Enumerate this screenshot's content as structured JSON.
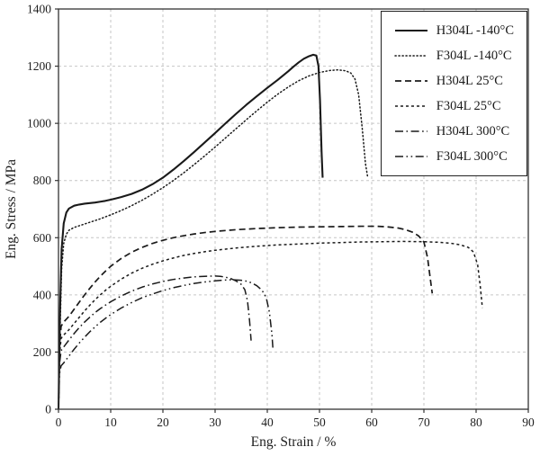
{
  "figure": {
    "background": "#ffffff",
    "border_color": "#333333",
    "text_color": "#1f1f1f"
  },
  "chart_data": {
    "type": "line",
    "title": "",
    "xlabel": "Eng. Strain / %",
    "ylabel": "Eng. Stress / MPa",
    "xlim": [
      0,
      90
    ],
    "ylim": [
      0,
      1400
    ],
    "x_ticks": [
      0,
      10,
      20,
      30,
      40,
      50,
      60,
      70,
      80,
      90
    ],
    "y_ticks": [
      0,
      200,
      400,
      600,
      800,
      1000,
      1200,
      1400
    ],
    "grid": true,
    "grid_color": "#c6c6c6",
    "line_color": "#1a1a1a",
    "legend_position": "top-right",
    "series": [
      {
        "name": "H304L -140°C",
        "style": "solid",
        "points": [
          [
            0,
            0
          ],
          [
            0.3,
            350
          ],
          [
            0.6,
            560
          ],
          [
            1,
            650
          ],
          [
            1.5,
            688
          ],
          [
            2,
            702
          ],
          [
            3,
            712
          ],
          [
            4,
            716
          ],
          [
            5,
            719
          ],
          [
            6,
            721
          ],
          [
            7,
            723
          ],
          [
            8,
            726
          ],
          [
            9,
            729
          ],
          [
            10,
            733
          ],
          [
            12,
            742
          ],
          [
            14,
            753
          ],
          [
            16,
            768
          ],
          [
            18,
            787
          ],
          [
            20,
            810
          ],
          [
            22,
            838
          ],
          [
            24,
            868
          ],
          [
            26,
            900
          ],
          [
            28,
            933
          ],
          [
            30,
            966
          ],
          [
            32,
            1000
          ],
          [
            34,
            1033
          ],
          [
            36,
            1065
          ],
          [
            38,
            1095
          ],
          [
            40,
            1124
          ],
          [
            42,
            1152
          ],
          [
            44,
            1182
          ],
          [
            45,
            1198
          ],
          [
            46,
            1213
          ],
          [
            47,
            1226
          ],
          [
            48,
            1235
          ],
          [
            48.8,
            1240
          ],
          [
            49.4,
            1237
          ],
          [
            49.8,
            1200
          ],
          [
            50.1,
            1080
          ],
          [
            50.4,
            900
          ],
          [
            50.6,
            810
          ]
        ]
      },
      {
        "name": "F304L -140°C",
        "style": "dotted",
        "points": [
          [
            0,
            0
          ],
          [
            0.3,
            280
          ],
          [
            0.6,
            490
          ],
          [
            1,
            580
          ],
          [
            1.5,
            612
          ],
          [
            2,
            626
          ],
          [
            3,
            636
          ],
          [
            4,
            642
          ],
          [
            5,
            648
          ],
          [
            6,
            654
          ],
          [
            7,
            660
          ],
          [
            8,
            666
          ],
          [
            9,
            673
          ],
          [
            10,
            680
          ],
          [
            12,
            695
          ],
          [
            14,
            712
          ],
          [
            16,
            731
          ],
          [
            18,
            752
          ],
          [
            20,
            775
          ],
          [
            22,
            800
          ],
          [
            24,
            827
          ],
          [
            26,
            856
          ],
          [
            28,
            886
          ],
          [
            30,
            917
          ],
          [
            32,
            949
          ],
          [
            34,
            981
          ],
          [
            36,
            1013
          ],
          [
            38,
            1044
          ],
          [
            40,
            1074
          ],
          [
            42,
            1102
          ],
          [
            44,
            1127
          ],
          [
            46,
            1149
          ],
          [
            48,
            1166
          ],
          [
            50,
            1178
          ],
          [
            52,
            1185
          ],
          [
            53.5,
            1187
          ],
          [
            55,
            1184
          ],
          [
            56,
            1176
          ],
          [
            56.8,
            1155
          ],
          [
            57.5,
            1100
          ],
          [
            58.2,
            980
          ],
          [
            58.8,
            860
          ],
          [
            59.2,
            815
          ]
        ]
      },
      {
        "name": "H304L 25°C",
        "style": "dash-long",
        "points": [
          [
            0,
            0
          ],
          [
            0.2,
            220
          ],
          [
            0.5,
            290
          ],
          [
            1,
            305
          ],
          [
            2,
            325
          ],
          [
            3,
            350
          ],
          [
            4,
            375
          ],
          [
            5,
            400
          ],
          [
            6,
            423
          ],
          [
            7,
            445
          ],
          [
            8,
            465
          ],
          [
            9,
            483
          ],
          [
            10,
            500
          ],
          [
            12,
            527
          ],
          [
            14,
            549
          ],
          [
            16,
            566
          ],
          [
            18,
            580
          ],
          [
            20,
            591
          ],
          [
            22,
            600
          ],
          [
            24,
            607
          ],
          [
            26,
            613
          ],
          [
            28,
            618
          ],
          [
            30,
            622
          ],
          [
            34,
            628
          ],
          [
            38,
            632
          ],
          [
            42,
            635
          ],
          [
            46,
            637
          ],
          [
            50,
            638
          ],
          [
            54,
            639
          ],
          [
            58,
            640
          ],
          [
            61,
            640
          ],
          [
            63,
            638
          ],
          [
            65,
            634
          ],
          [
            66.5,
            628
          ],
          [
            68,
            618
          ],
          [
            69,
            606
          ],
          [
            70,
            585
          ],
          [
            70.7,
            530
          ],
          [
            71.2,
            460
          ],
          [
            71.6,
            405
          ]
        ]
      },
      {
        "name": "F304L 25°C",
        "style": "dash-short",
        "points": [
          [
            0,
            0
          ],
          [
            0.2,
            190
          ],
          [
            0.5,
            248
          ],
          [
            1,
            260
          ],
          [
            2,
            278
          ],
          [
            3,
            300
          ],
          [
            4,
            322
          ],
          [
            5,
            344
          ],
          [
            6,
            364
          ],
          [
            7,
            383
          ],
          [
            8,
            400
          ],
          [
            9,
            416
          ],
          [
            10,
            430
          ],
          [
            12,
            455
          ],
          [
            14,
            476
          ],
          [
            16,
            493
          ],
          [
            18,
            507
          ],
          [
            20,
            519
          ],
          [
            22,
            529
          ],
          [
            24,
            538
          ],
          [
            26,
            545
          ],
          [
            28,
            551
          ],
          [
            30,
            556
          ],
          [
            34,
            564
          ],
          [
            38,
            570
          ],
          [
            42,
            575
          ],
          [
            46,
            578
          ],
          [
            50,
            581
          ],
          [
            54,
            583
          ],
          [
            58,
            585
          ],
          [
            62,
            586
          ],
          [
            66,
            587
          ],
          [
            70,
            586
          ],
          [
            73,
            584
          ],
          [
            75,
            581
          ],
          [
            77,
            575
          ],
          [
            78.5,
            566
          ],
          [
            79.5,
            550
          ],
          [
            80.3,
            505
          ],
          [
            80.8,
            430
          ],
          [
            81.2,
            355
          ]
        ]
      },
      {
        "name": "H304L 300°C",
        "style": "dash-dot",
        "points": [
          [
            0,
            0
          ],
          [
            0.2,
            160
          ],
          [
            0.5,
            205
          ],
          [
            1,
            218
          ],
          [
            2,
            242
          ],
          [
            3,
            265
          ],
          [
            4,
            286
          ],
          [
            5,
            305
          ],
          [
            6,
            322
          ],
          [
            7,
            338
          ],
          [
            8,
            352
          ],
          [
            9,
            364
          ],
          [
            10,
            376
          ],
          [
            12,
            396
          ],
          [
            14,
            413
          ],
          [
            16,
            427
          ],
          [
            18,
            438
          ],
          [
            20,
            447
          ],
          [
            22,
            454
          ],
          [
            24,
            459
          ],
          [
            26,
            463
          ],
          [
            28,
            465
          ],
          [
            30,
            466
          ],
          [
            31,
            465
          ],
          [
            32,
            462
          ],
          [
            33,
            457
          ],
          [
            34,
            449
          ],
          [
            35,
            437
          ],
          [
            35.7,
            418
          ],
          [
            36.2,
            380
          ],
          [
            36.6,
            310
          ],
          [
            36.9,
            240
          ]
        ]
      },
      {
        "name": "F304L 300°C",
        "style": "dash-dot-dot",
        "points": [
          [
            0,
            0
          ],
          [
            0.2,
            125
          ],
          [
            0.5,
            152
          ],
          [
            1,
            162
          ],
          [
            2,
            186
          ],
          [
            3,
            210
          ],
          [
            4,
            232
          ],
          [
            5,
            252
          ],
          [
            6,
            271
          ],
          [
            7,
            288
          ],
          [
            8,
            304
          ],
          [
            9,
            318
          ],
          [
            10,
            331
          ],
          [
            12,
            354
          ],
          [
            14,
            373
          ],
          [
            16,
            390
          ],
          [
            18,
            403
          ],
          [
            20,
            415
          ],
          [
            22,
            425
          ],
          [
            24,
            433
          ],
          [
            26,
            440
          ],
          [
            28,
            445
          ],
          [
            30,
            449
          ],
          [
            32,
            452
          ],
          [
            33.5,
            453
          ],
          [
            35,
            451
          ],
          [
            36,
            448
          ],
          [
            37,
            442
          ],
          [
            38,
            432
          ],
          [
            39,
            416
          ],
          [
            39.8,
            390
          ],
          [
            40.4,
            340
          ],
          [
            40.9,
            260
          ],
          [
            41.1,
            205
          ]
        ]
      }
    ]
  }
}
